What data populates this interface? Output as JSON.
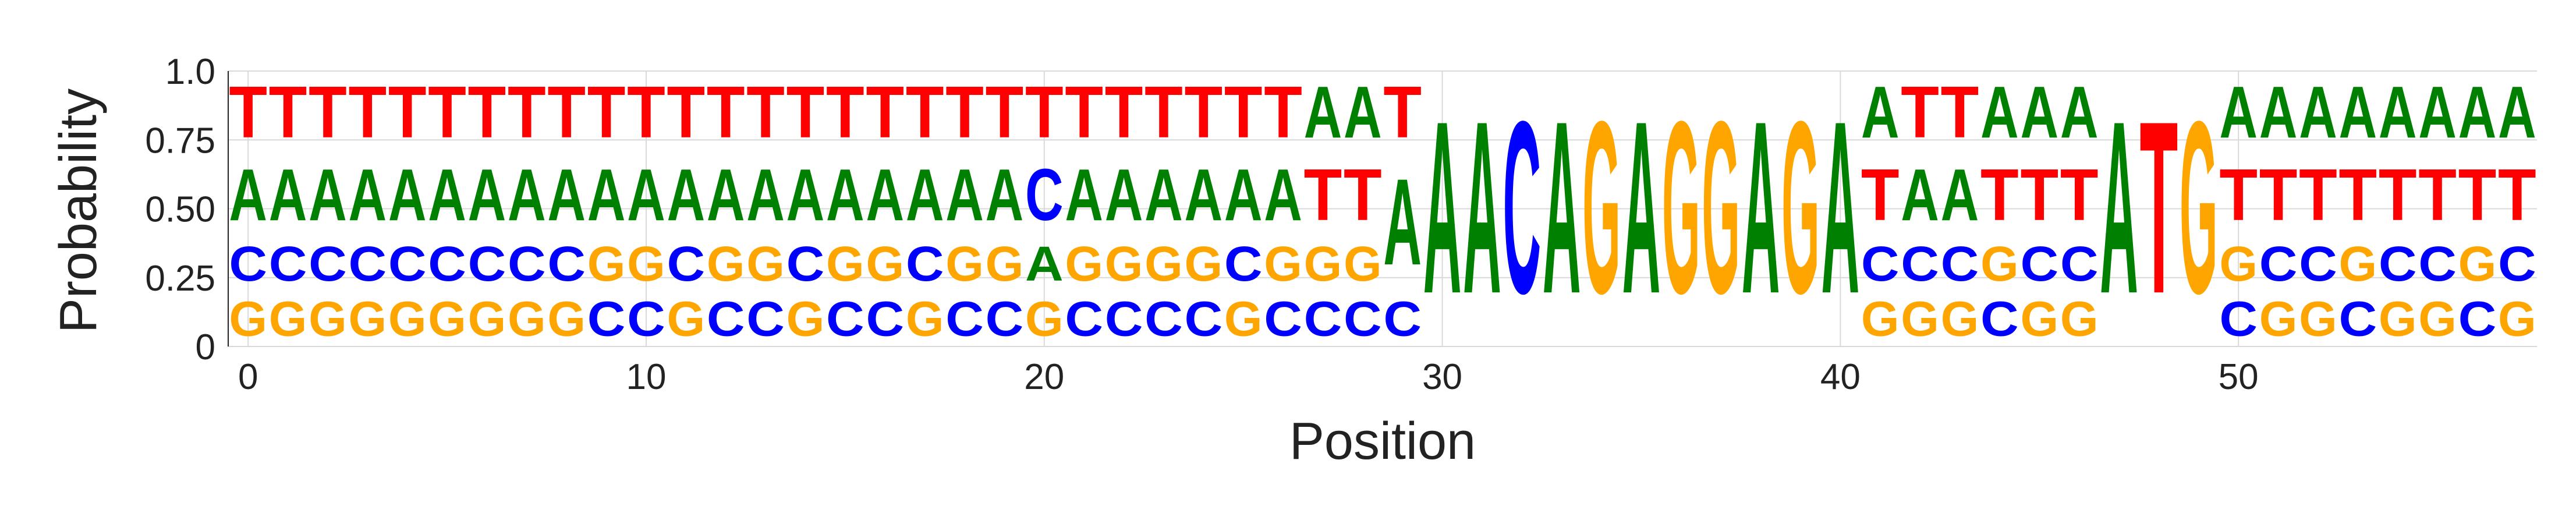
{
  "chart_data": {
    "type": "sequence-logo",
    "xlabel": "Position",
    "ylabel": "Probability",
    "ylim": [
      0,
      1
    ],
    "yticks": [
      0,
      0.25,
      0.5,
      0.75,
      1.0
    ],
    "ytick_labels": [
      "0",
      "0.25",
      "0.50",
      "0.75",
      "1.0"
    ],
    "xticks": [
      0,
      10,
      20,
      30,
      40,
      50
    ],
    "xtick_labels": [
      "0",
      "10",
      "20",
      "30",
      "40",
      "50"
    ],
    "grid": true,
    "colors": {
      "A": "#008000",
      "C": "#0000ff",
      "G": "#ffa500",
      "T": "#ff0000"
    },
    "positions": [
      {
        "pos": 0,
        "probs": {
          "G": 0.2,
          "C": 0.2,
          "A": 0.3,
          "T": 0.3
        }
      },
      {
        "pos": 1,
        "probs": {
          "G": 0.2,
          "C": 0.2,
          "A": 0.3,
          "T": 0.3
        }
      },
      {
        "pos": 2,
        "probs": {
          "G": 0.2,
          "C": 0.2,
          "A": 0.3,
          "T": 0.3
        }
      },
      {
        "pos": 3,
        "probs": {
          "G": 0.2,
          "C": 0.2,
          "A": 0.3,
          "T": 0.3
        }
      },
      {
        "pos": 4,
        "probs": {
          "G": 0.2,
          "C": 0.2,
          "A": 0.3,
          "T": 0.3
        }
      },
      {
        "pos": 5,
        "probs": {
          "G": 0.2,
          "C": 0.2,
          "A": 0.3,
          "T": 0.3
        }
      },
      {
        "pos": 6,
        "probs": {
          "G": 0.2,
          "C": 0.2,
          "A": 0.3,
          "T": 0.3
        }
      },
      {
        "pos": 7,
        "probs": {
          "G": 0.2,
          "C": 0.2,
          "A": 0.3,
          "T": 0.3
        }
      },
      {
        "pos": 8,
        "probs": {
          "G": 0.2,
          "C": 0.2,
          "A": 0.3,
          "T": 0.3
        }
      },
      {
        "pos": 9,
        "probs": {
          "C": 0.2,
          "G": 0.2,
          "A": 0.3,
          "T": 0.3
        }
      },
      {
        "pos": 10,
        "probs": {
          "C": 0.2,
          "G": 0.2,
          "A": 0.3,
          "T": 0.3
        }
      },
      {
        "pos": 11,
        "probs": {
          "G": 0.2,
          "C": 0.2,
          "A": 0.3,
          "T": 0.3
        }
      },
      {
        "pos": 12,
        "probs": {
          "C": 0.2,
          "G": 0.2,
          "A": 0.3,
          "T": 0.3
        }
      },
      {
        "pos": 13,
        "probs": {
          "C": 0.2,
          "G": 0.2,
          "A": 0.3,
          "T": 0.3
        }
      },
      {
        "pos": 14,
        "probs": {
          "G": 0.2,
          "C": 0.2,
          "A": 0.3,
          "T": 0.3
        }
      },
      {
        "pos": 15,
        "probs": {
          "C": 0.2,
          "G": 0.2,
          "A": 0.3,
          "T": 0.3
        }
      },
      {
        "pos": 16,
        "probs": {
          "C": 0.2,
          "G": 0.2,
          "A": 0.3,
          "T": 0.3
        }
      },
      {
        "pos": 17,
        "probs": {
          "G": 0.2,
          "C": 0.2,
          "A": 0.3,
          "T": 0.3
        }
      },
      {
        "pos": 18,
        "probs": {
          "C": 0.2,
          "G": 0.2,
          "A": 0.3,
          "T": 0.3
        }
      },
      {
        "pos": 19,
        "probs": {
          "C": 0.2,
          "G": 0.2,
          "A": 0.3,
          "T": 0.3
        }
      },
      {
        "pos": 20,
        "probs": {
          "G": 0.2,
          "A": 0.2,
          "C": 0.3,
          "T": 0.3
        }
      },
      {
        "pos": 21,
        "probs": {
          "C": 0.2,
          "G": 0.2,
          "A": 0.3,
          "T": 0.3
        }
      },
      {
        "pos": 22,
        "probs": {
          "C": 0.2,
          "G": 0.2,
          "A": 0.3,
          "T": 0.3
        }
      },
      {
        "pos": 23,
        "probs": {
          "C": 0.2,
          "G": 0.2,
          "A": 0.3,
          "T": 0.3
        }
      },
      {
        "pos": 24,
        "probs": {
          "C": 0.2,
          "G": 0.2,
          "A": 0.3,
          "T": 0.3
        }
      },
      {
        "pos": 25,
        "probs": {
          "G": 0.2,
          "C": 0.2,
          "A": 0.3,
          "T": 0.3
        }
      },
      {
        "pos": 26,
        "probs": {
          "C": 0.2,
          "G": 0.2,
          "A": 0.3,
          "T": 0.3
        }
      },
      {
        "pos": 27,
        "probs": {
          "C": 0.2,
          "G": 0.2,
          "T": 0.3,
          "A": 0.3
        }
      },
      {
        "pos": 28,
        "probs": {
          "C": 0.2,
          "G": 0.2,
          "T": 0.3,
          "A": 0.3
        }
      },
      {
        "pos": 29,
        "probs": {
          "C": 0.2,
          "A": 0.5,
          "T": 0.3
        }
      },
      {
        "pos": 30,
        "probs": {
          "A": 1.0
        }
      },
      {
        "pos": 31,
        "probs": {
          "A": 1.0
        }
      },
      {
        "pos": 32,
        "probs": {
          "C": 1.0
        }
      },
      {
        "pos": 33,
        "probs": {
          "A": 1.0
        }
      },
      {
        "pos": 34,
        "probs": {
          "G": 1.0
        }
      },
      {
        "pos": 35,
        "probs": {
          "A": 1.0
        }
      },
      {
        "pos": 36,
        "probs": {
          "G": 1.0
        }
      },
      {
        "pos": 37,
        "probs": {
          "G": 1.0
        }
      },
      {
        "pos": 38,
        "probs": {
          "A": 1.0
        }
      },
      {
        "pos": 39,
        "probs": {
          "G": 1.0
        }
      },
      {
        "pos": 40,
        "probs": {
          "A": 1.0
        }
      },
      {
        "pos": 41,
        "probs": {
          "G": 0.2,
          "C": 0.2,
          "T": 0.3,
          "A": 0.3
        }
      },
      {
        "pos": 42,
        "probs": {
          "G": 0.2,
          "C": 0.2,
          "A": 0.3,
          "T": 0.3
        }
      },
      {
        "pos": 43,
        "probs": {
          "G": 0.2,
          "C": 0.2,
          "A": 0.3,
          "T": 0.3
        }
      },
      {
        "pos": 44,
        "probs": {
          "C": 0.2,
          "G": 0.2,
          "T": 0.3,
          "A": 0.3
        }
      },
      {
        "pos": 45,
        "probs": {
          "G": 0.2,
          "C": 0.2,
          "T": 0.3,
          "A": 0.3
        }
      },
      {
        "pos": 46,
        "probs": {
          "G": 0.2,
          "C": 0.2,
          "T": 0.3,
          "A": 0.3
        }
      },
      {
        "pos": 47,
        "probs": {
          "A": 1.0
        }
      },
      {
        "pos": 48,
        "probs": {
          "T": 1.0
        }
      },
      {
        "pos": 49,
        "probs": {
          "G": 1.0
        }
      },
      {
        "pos": 50,
        "probs": {
          "C": 0.2,
          "G": 0.2,
          "T": 0.3,
          "A": 0.3
        }
      },
      {
        "pos": 51,
        "probs": {
          "G": 0.2,
          "C": 0.2,
          "T": 0.3,
          "A": 0.3
        }
      },
      {
        "pos": 52,
        "probs": {
          "G": 0.2,
          "C": 0.2,
          "T": 0.3,
          "A": 0.3
        }
      },
      {
        "pos": 53,
        "probs": {
          "C": 0.2,
          "G": 0.2,
          "T": 0.3,
          "A": 0.3
        }
      },
      {
        "pos": 54,
        "probs": {
          "G": 0.2,
          "C": 0.2,
          "T": 0.3,
          "A": 0.3
        }
      },
      {
        "pos": 55,
        "probs": {
          "G": 0.2,
          "C": 0.2,
          "T": 0.3,
          "A": 0.3
        }
      },
      {
        "pos": 56,
        "probs": {
          "C": 0.2,
          "G": 0.2,
          "T": 0.3,
          "A": 0.3
        }
      },
      {
        "pos": 57,
        "probs": {
          "G": 0.2,
          "C": 0.2,
          "T": 0.3,
          "A": 0.3
        }
      }
    ]
  }
}
